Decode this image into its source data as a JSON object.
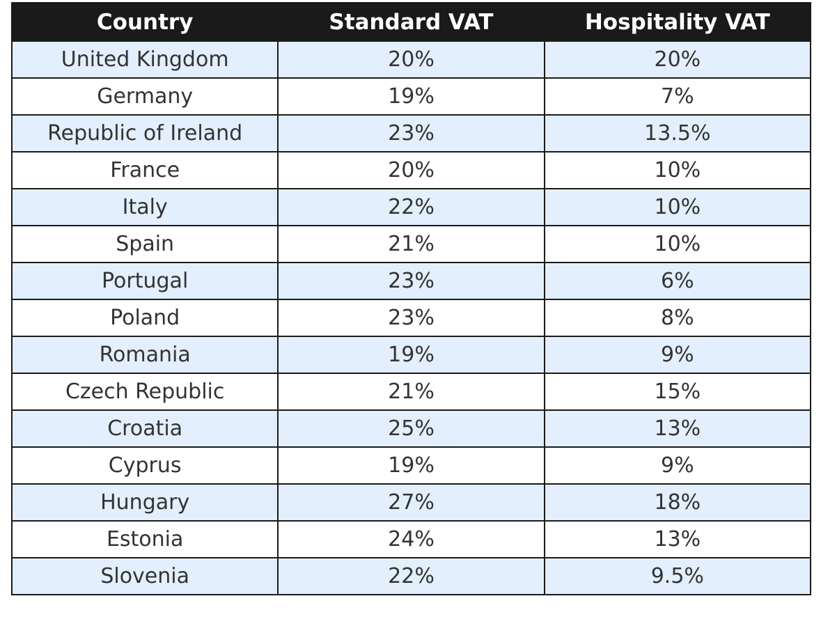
{
  "table": {
    "headers": [
      "Country",
      "Standard VAT",
      "Hospitality VAT"
    ],
    "rows": [
      {
        "country": "United Kingdom",
        "standard": "20%",
        "hospitality": "20%"
      },
      {
        "country": "Germany",
        "standard": "19%",
        "hospitality": "7%"
      },
      {
        "country": "Republic of Ireland",
        "standard": "23%",
        "hospitality": "13.5%"
      },
      {
        "country": "France",
        "standard": "20%",
        "hospitality": "10%"
      },
      {
        "country": "Italy",
        "standard": "22%",
        "hospitality": "10%"
      },
      {
        "country": "Spain",
        "standard": "21%",
        "hospitality": "10%"
      },
      {
        "country": "Portugal",
        "standard": "23%",
        "hospitality": "6%"
      },
      {
        "country": "Poland",
        "standard": "23%",
        "hospitality": "8%"
      },
      {
        "country": "Romania",
        "standard": "19%",
        "hospitality": "9%"
      },
      {
        "country": "Czech Republic",
        "standard": "21%",
        "hospitality": "15%"
      },
      {
        "country": "Croatia",
        "standard": "25%",
        "hospitality": "13%"
      },
      {
        "country": "Cyprus",
        "standard": "19%",
        "hospitality": "9%"
      },
      {
        "country": "Hungary",
        "standard": "27%",
        "hospitality": "18%"
      },
      {
        "country": "Estonia",
        "standard": "24%",
        "hospitality": "13%"
      },
      {
        "country": "Slovenia",
        "standard": "22%",
        "hospitality": "9.5%"
      }
    ]
  },
  "colors": {
    "header_bg": "#1a1a1a",
    "header_text": "#ffffff",
    "row_alt_bg": "#e3effd",
    "row_bg": "#ffffff",
    "cell_text": "#333333",
    "border": "#1a1a1a"
  }
}
